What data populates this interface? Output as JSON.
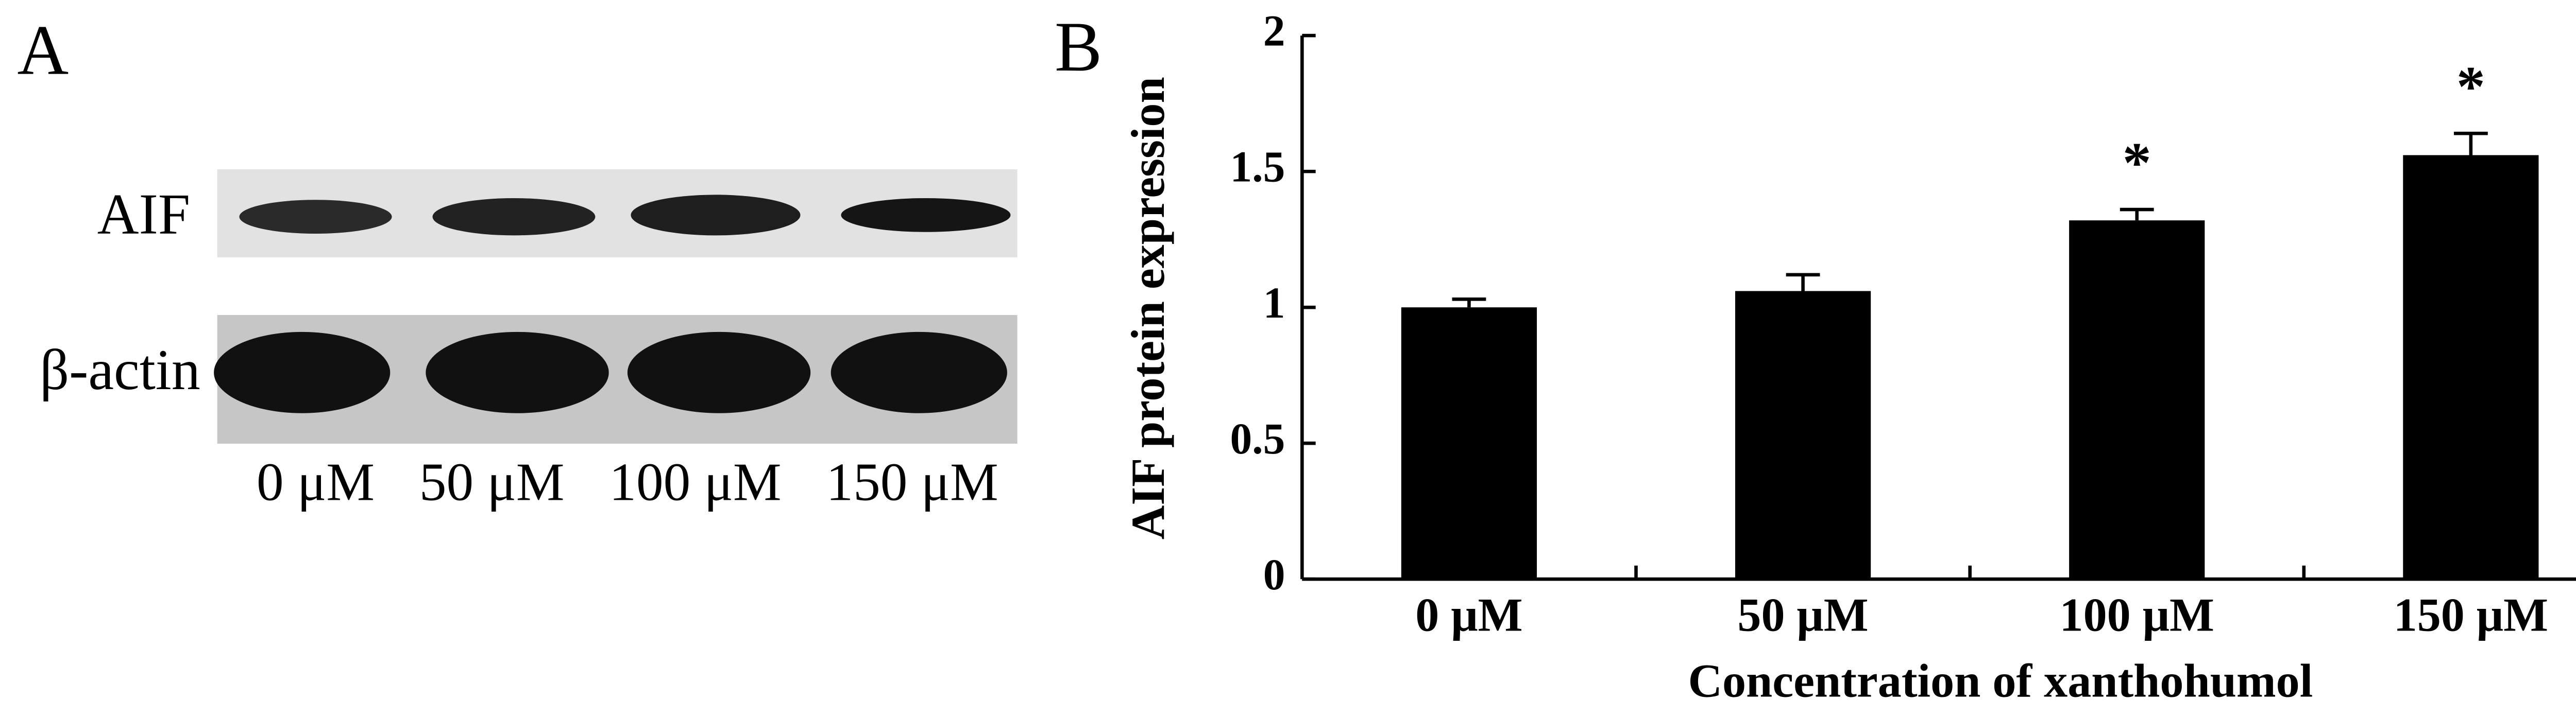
{
  "panel_a": {
    "label": "A",
    "rows": [
      "AIF",
      "β-actin"
    ],
    "lanes": [
      "0 μM",
      "50 μM",
      "100 μM",
      "150 μM"
    ]
  },
  "chart_data": {
    "type": "bar",
    "panel_label": "B",
    "x_label": "Concentration of xanthohumol",
    "y_label": "AIF protein expression",
    "categories": [
      "0 μM",
      "50 μM",
      "100 μM",
      "150 μM"
    ],
    "values": [
      1.0,
      1.06,
      1.32,
      1.56
    ],
    "errors": [
      0.03,
      0.06,
      0.04,
      0.08
    ],
    "significance": [
      null,
      null,
      "*",
      "*"
    ],
    "color": "#000000",
    "ylim": [
      0,
      2
    ],
    "yticks": [
      0,
      0.5,
      1,
      1.5,
      2
    ],
    "grid": false
  }
}
